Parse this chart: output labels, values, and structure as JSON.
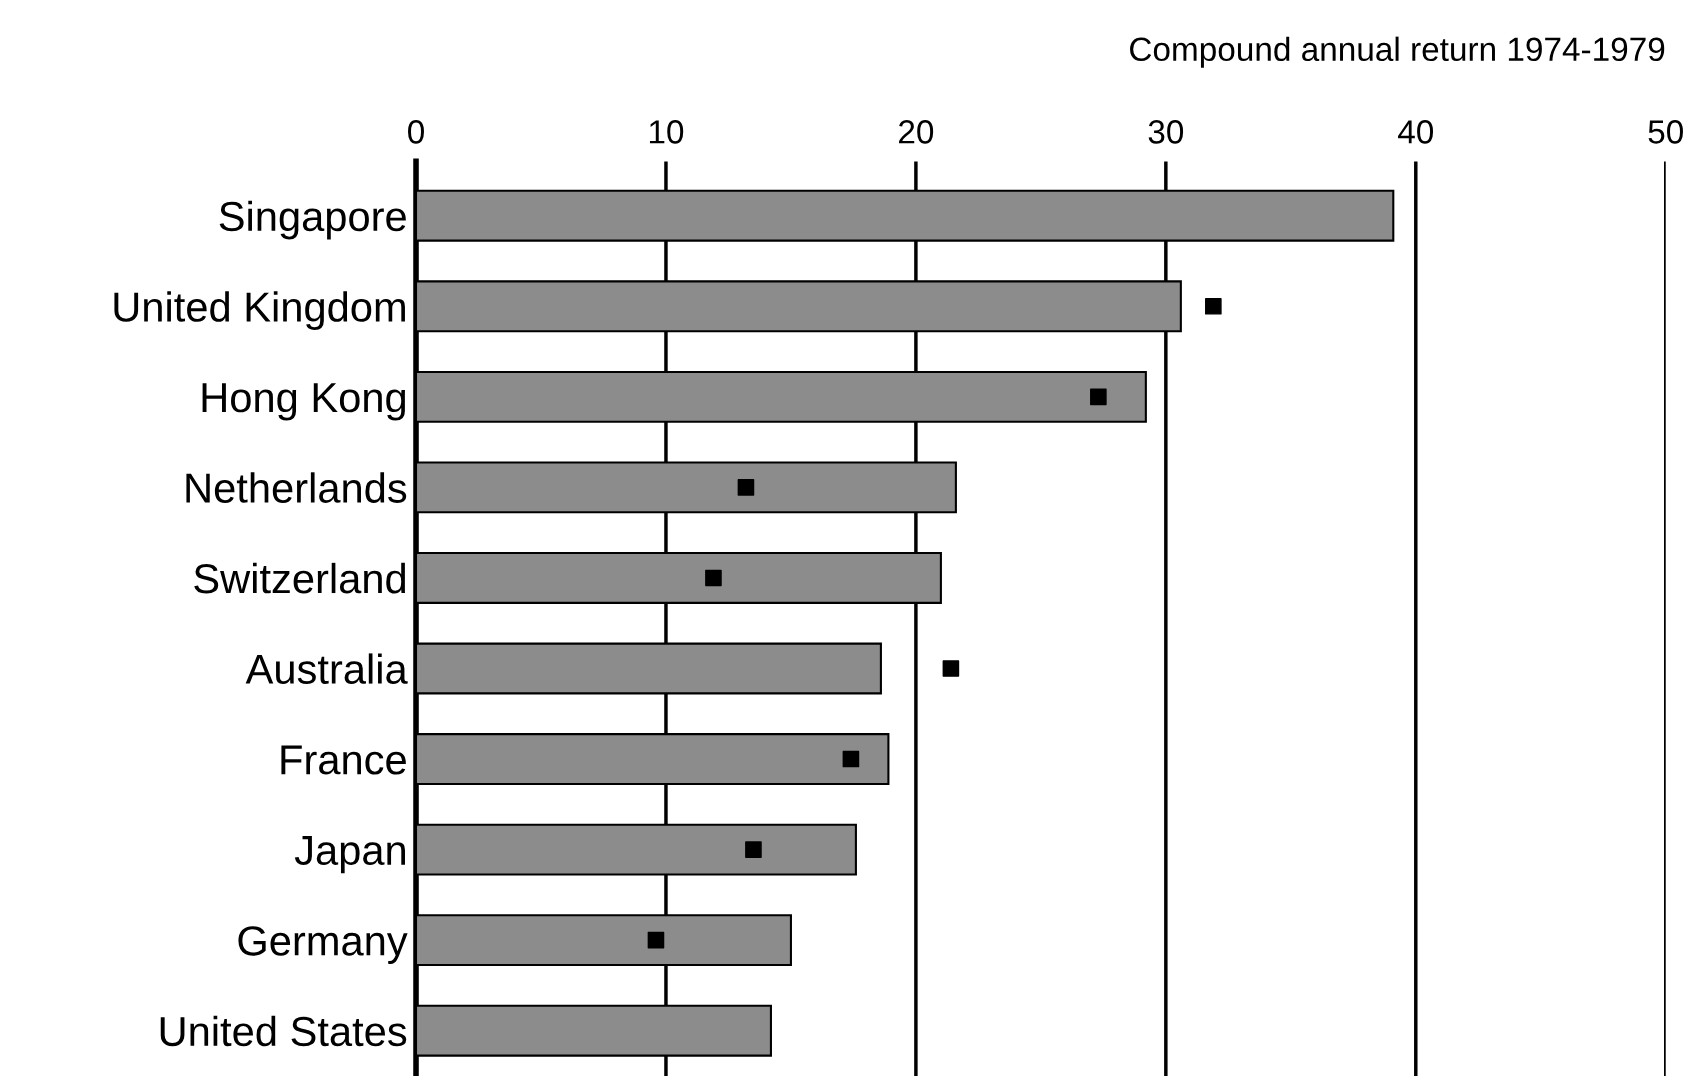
{
  "chart_data": {
    "type": "bar",
    "orientation": "horizontal",
    "xlabel": "Compound annual return 1974-1979",
    "categories": [
      "Singapore",
      "United Kingdom",
      "Hong Kong",
      "Netherlands",
      "Switzerland",
      "Australia",
      "France",
      "Japan",
      "Germany",
      "United States"
    ],
    "series": [
      {
        "color": "#8c8c8c",
        "values": [
          39.1,
          30.6,
          29.2,
          21.6,
          21.0,
          18.6,
          18.9,
          17.6,
          15.0,
          14.2
        ]
      },
      {
        "type": "scatter",
        "marker": "square",
        "color": "#000000",
        "values": [
          null,
          31.9,
          27.3,
          13.2,
          11.9,
          21.4,
          17.4,
          13.5,
          9.6,
          null
        ]
      }
    ],
    "xlim": [
      0,
      50
    ],
    "xticks": [
      0,
      10,
      20,
      30,
      40,
      50
    ],
    "grid": "x"
  }
}
